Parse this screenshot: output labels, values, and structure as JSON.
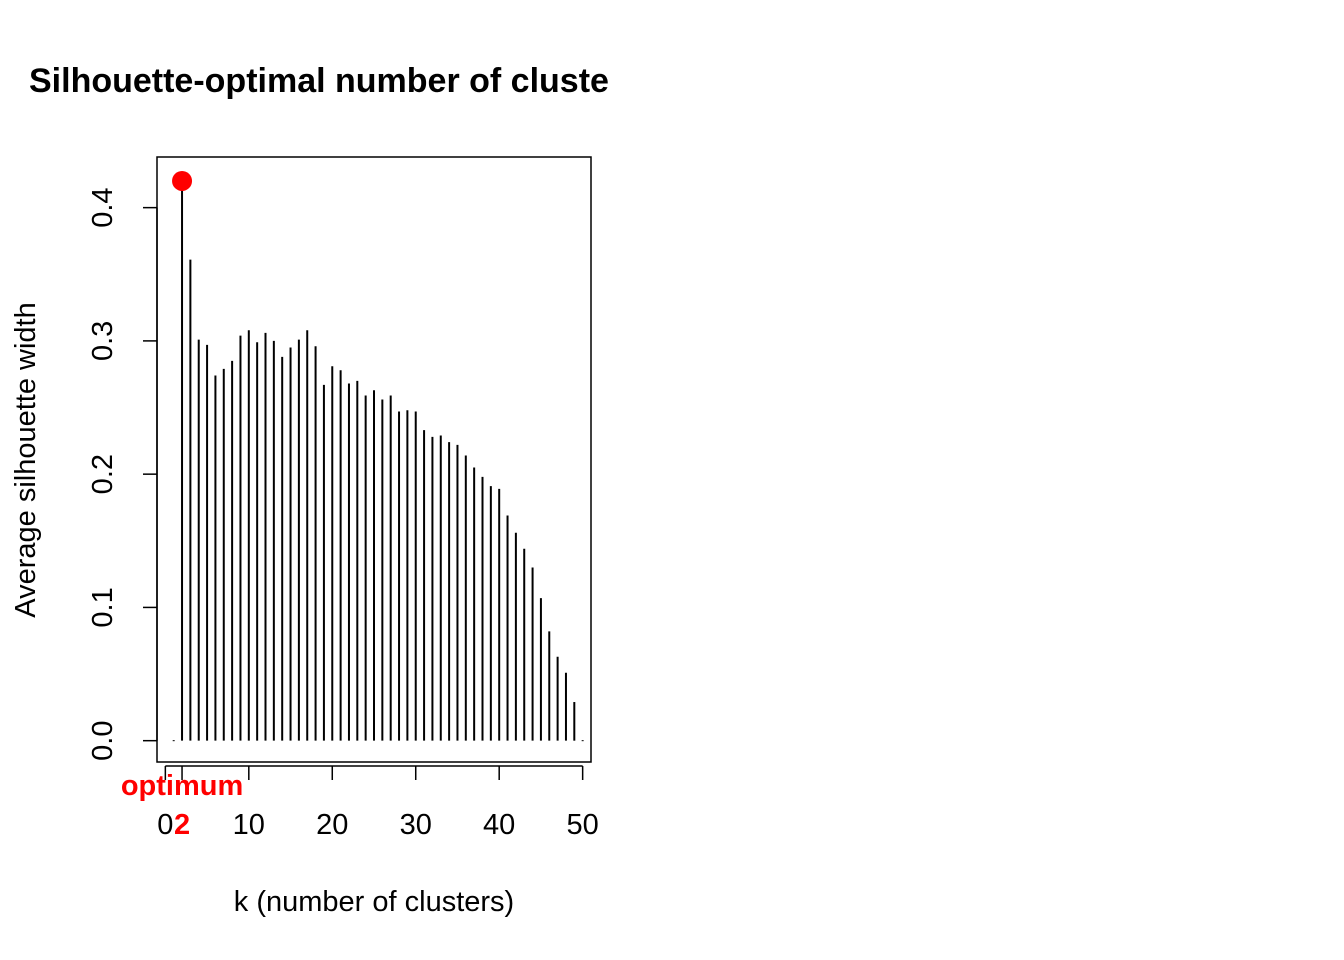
{
  "chart_data": {
    "type": "bar",
    "title": "Silhouette-optimal number of cluste",
    "xlabel": "k (number of clusters)",
    "ylabel": "Average silhouette width",
    "xlim": [
      -1,
      51
    ],
    "ylim": [
      -0.016,
      0.438
    ],
    "x_ticks": [
      "0",
      "10",
      "20",
      "30",
      "40",
      "50"
    ],
    "y_ticks": [
      "0.0",
      "0.1",
      "0.2",
      "0.3",
      "0.4"
    ],
    "grid": false,
    "x": [
      1,
      2,
      3,
      4,
      5,
      6,
      7,
      8,
      9,
      10,
      11,
      12,
      13,
      14,
      15,
      16,
      17,
      18,
      19,
      20,
      21,
      22,
      23,
      24,
      25,
      26,
      27,
      28,
      29,
      30,
      31,
      32,
      33,
      34,
      35,
      36,
      37,
      38,
      39,
      40,
      41,
      42,
      43,
      44,
      45,
      46,
      47,
      48,
      49,
      50
    ],
    "values": [
      0,
      0.42,
      0.361,
      0.301,
      0.297,
      0.274,
      0.279,
      0.285,
      0.304,
      0.308,
      0.299,
      0.306,
      0.3,
      0.288,
      0.295,
      0.301,
      0.308,
      0.296,
      0.267,
      0.281,
      0.278,
      0.268,
      0.27,
      0.259,
      0.263,
      0.256,
      0.259,
      0.247,
      0.248,
      0.247,
      0.233,
      0.228,
      0.229,
      0.224,
      0.222,
      0.214,
      0.205,
      0.198,
      0.191,
      0.189,
      0.169,
      0.156,
      0.144,
      0.13,
      0.107,
      0.082,
      0.063,
      0.051,
      0.029,
      0
    ],
    "optimum": {
      "k": 2,
      "value": 0.42,
      "label": "optimum",
      "k_label": "2",
      "color": "#ff0000"
    }
  }
}
